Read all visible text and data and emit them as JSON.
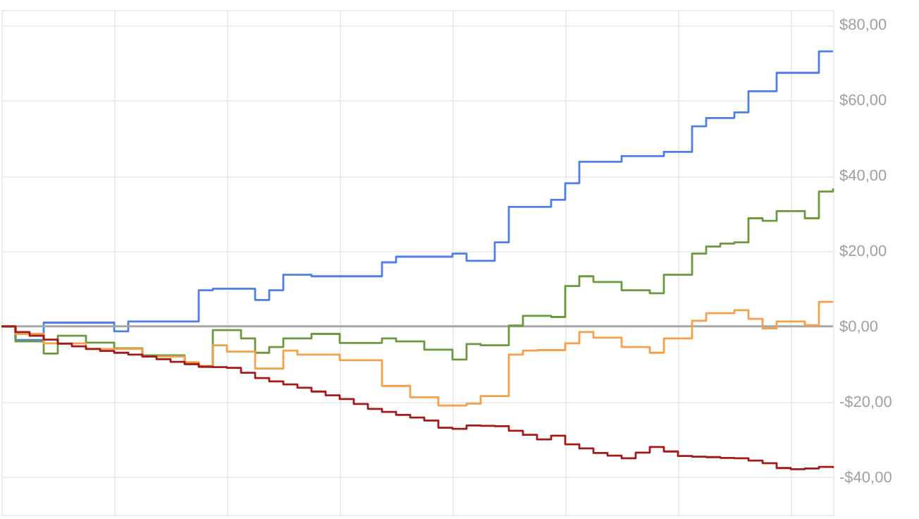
{
  "chart_data": {
    "type": "step",
    "categories": [
      null,
      null,
      null,
      null,
      null,
      null,
      null,
      null,
      null,
      null,
      null,
      null,
      null,
      null,
      null,
      null,
      null,
      null,
      null,
      null,
      null,
      null,
      null,
      null,
      null,
      null,
      null,
      null,
      null,
      null,
      null,
      null,
      null,
      null,
      null,
      null,
      null,
      null,
      null,
      null,
      null,
      null,
      null,
      null,
      null,
      null,
      null,
      null,
      null,
      null,
      null,
      null,
      null,
      null,
      null,
      null,
      null,
      null,
      null,
      null
    ],
    "ylim": [
      -50,
      84
    ],
    "yticks": [
      {
        "value": -40,
        "label": "-$40,00"
      },
      {
        "value": -20,
        "label": "-$20,00"
      },
      {
        "value": 0,
        "label": "$0,00"
      },
      {
        "value": 20,
        "label": "$20,00"
      },
      {
        "value": 40,
        "label": "$40,00"
      },
      {
        "value": 60,
        "label": "$60,00"
      },
      {
        "value": 80,
        "label": "$80,00"
      }
    ],
    "grid": true,
    "tick_labels": "y",
    "ref_lines": [
      {
        "axis": "y",
        "value": 0,
        "color": "#a6a6a6"
      }
    ],
    "series": [
      {
        "color": "#4f7fe6",
        "values": [
          0,
          -3.6,
          -3.6,
          1,
          1,
          1,
          1,
          1,
          -1.3,
          1.3,
          1.3,
          1.3,
          1.3,
          1.3,
          9.6,
          10,
          10,
          10,
          7,
          9.6,
          13.7,
          13.7,
          13.3,
          13.3,
          13.3,
          13.3,
          13.3,
          17,
          18.5,
          18.5,
          18.5,
          18.5,
          19.3,
          17.4,
          17.4,
          22.3,
          31.7,
          31.7,
          31.7,
          33.6,
          38,
          43.7,
          43.7,
          43.7,
          45.2,
          45.2,
          45.2,
          46.3,
          46.3,
          53.1,
          55.3,
          55.3,
          56.8,
          62.4,
          62.4,
          67.3,
          67.3,
          67.3,
          73,
          73
        ]
      },
      {
        "color": "#6b9a3e",
        "values": [
          0,
          -4,
          -4,
          -7.2,
          -2.5,
          -2.5,
          -4.3,
          -4.3,
          -5.8,
          -5.8,
          -7.7,
          -7.7,
          -7.7,
          -10,
          -10.7,
          -1,
          -1,
          -3.2,
          -7,
          -5.5,
          -3.2,
          -3.2,
          -2,
          -2,
          -4.4,
          -4.4,
          -4.4,
          -3.2,
          -4,
          -4,
          -6.2,
          -6.2,
          -8.8,
          -4.7,
          -5,
          -5,
          0.2,
          2.8,
          2.8,
          2.5,
          10.7,
          13.3,
          11.8,
          11.8,
          9.6,
          9.6,
          8.8,
          13.7,
          13.7,
          19.3,
          21.2,
          22,
          22.3,
          28.7,
          28,
          30.6,
          30.6,
          28.7,
          35.8,
          36.6
        ]
      },
      {
        "color": "#f5a04a",
        "values": [
          0,
          -2,
          -2,
          -4.5,
          -4.5,
          -4.5,
          -6,
          -6,
          -6,
          -6,
          -8,
          -8,
          -8,
          -9.5,
          -10.5,
          -5,
          -6.7,
          -6.7,
          -11.2,
          -11.2,
          -6.4,
          -7.5,
          -7.5,
          -7.5,
          -9,
          -9,
          -9,
          -15.8,
          -15.8,
          -18.8,
          -18.8,
          -21,
          -21,
          -20.5,
          -18.5,
          -18.5,
          -7.5,
          -6.4,
          -6.3,
          -6.3,
          -4.5,
          -1.5,
          -3,
          -3,
          -5.5,
          -5.5,
          -7,
          -3.2,
          -3.2,
          1.5,
          3.5,
          3.5,
          4.3,
          2,
          -0.5,
          1.3,
          1.3,
          0.3,
          6.5,
          6.5
        ]
      },
      {
        "color": "#a31a1a",
        "values": [
          0,
          -1.5,
          -2.5,
          -3.5,
          -4.6,
          -5.3,
          -6,
          -6.5,
          -7,
          -7.5,
          -8,
          -8.7,
          -9.4,
          -10,
          -10.7,
          -10.8,
          -11,
          -12.3,
          -13.7,
          -14.6,
          -15.4,
          -16.3,
          -17.3,
          -18.3,
          -19.3,
          -20.6,
          -21.9,
          -22.7,
          -23.5,
          -24.2,
          -25,
          -26.9,
          -27.2,
          -26.3,
          -26.4,
          -26.5,
          -27.7,
          -28.8,
          -30,
          -29,
          -31.3,
          -32.4,
          -33.6,
          -34.3,
          -35,
          -33.5,
          -32,
          -33.2,
          -34.4,
          -34.6,
          -34.7,
          -34.9,
          -35,
          -35.6,
          -36.3,
          -37.6,
          -37.9,
          -37.7,
          -37.3,
          -37.6
        ]
      }
    ]
  }
}
